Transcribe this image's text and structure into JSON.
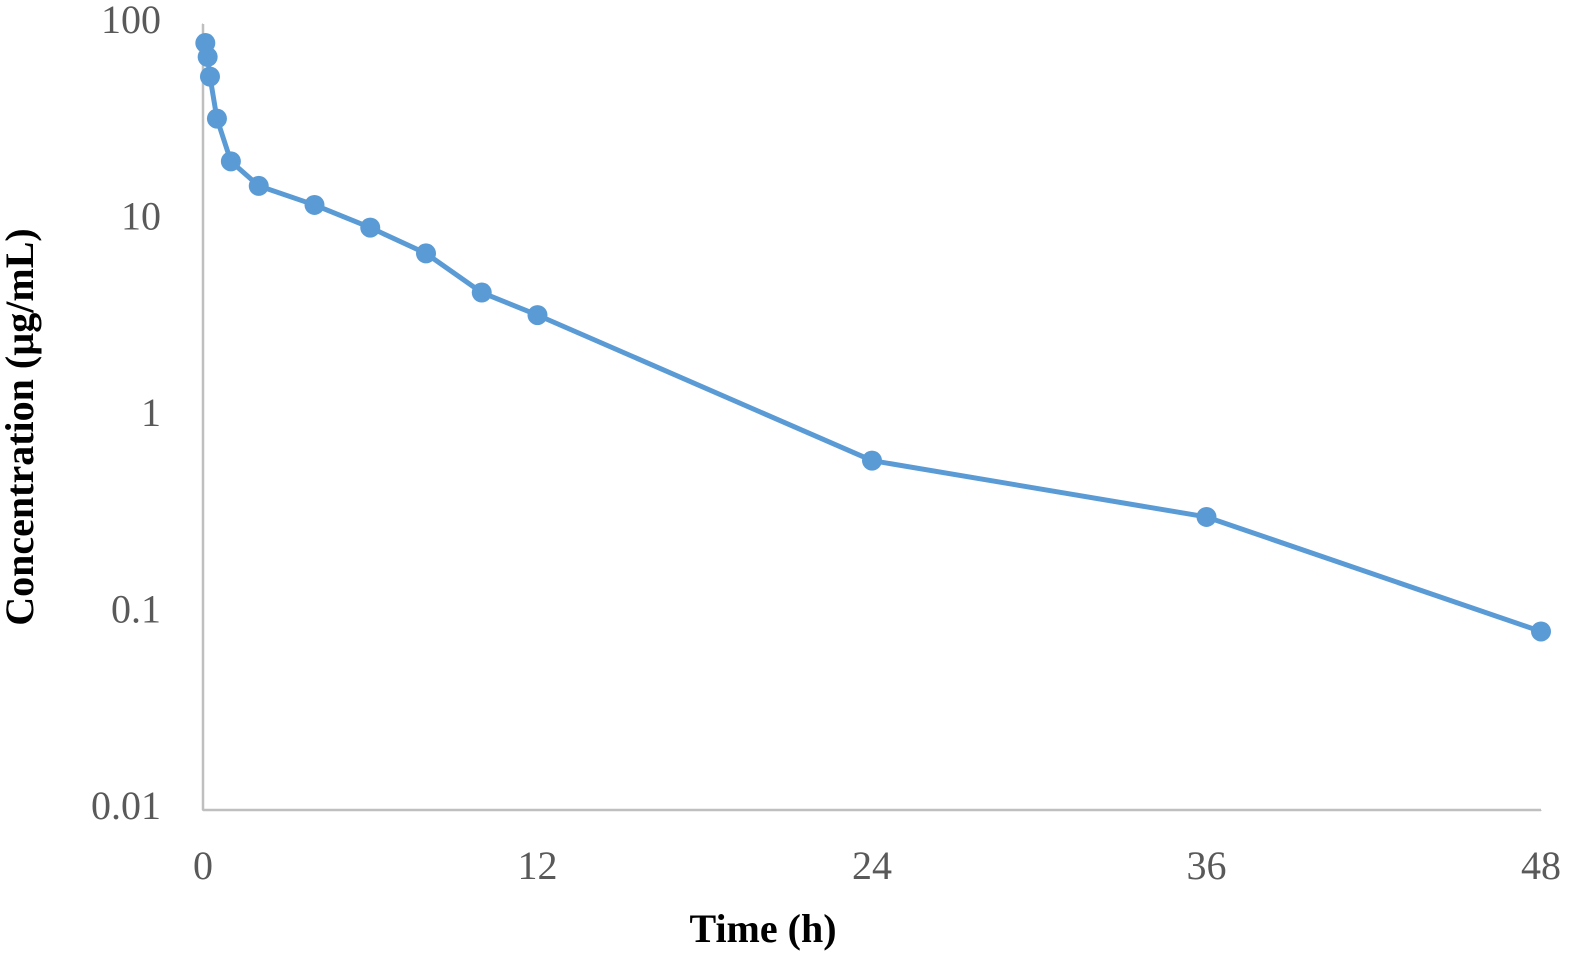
{
  "chart_data": {
    "type": "line",
    "x_label": "Time (h)",
    "y_label": "Concentration (µg/mL)",
    "x": [
      0.083,
      0.167,
      0.25,
      0.5,
      1,
      2,
      4,
      6,
      8,
      10,
      12,
      24,
      36,
      48
    ],
    "values": [
      80,
      68,
      54,
      33,
      20,
      15,
      12,
      9.2,
      6.8,
      4.3,
      3.3,
      0.6,
      0.31,
      0.081
    ],
    "color": "#5b9bd5",
    "xlim": [
      0,
      48
    ],
    "xticks": [
      0,
      12,
      24,
      36,
      48
    ],
    "ylim": [
      0.01,
      100
    ],
    "yticks": [
      0.01,
      0.1,
      1,
      10,
      100
    ],
    "y_log": true,
    "grid": false
  }
}
